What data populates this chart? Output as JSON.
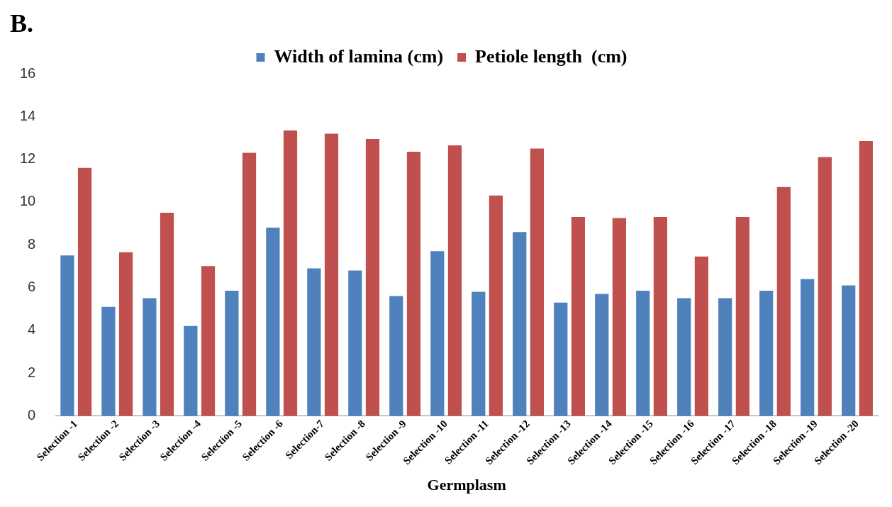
{
  "chart_data": {
    "type": "bar",
    "xlabel": "Germplasm",
    "annotations": [
      "B."
    ],
    "categories": [
      "Selection -1",
      "Selection -2",
      "Selection -3",
      "Selection -4",
      "Selection -5",
      "Selection -6",
      "Selection-7",
      "Selection -8",
      "Selection -9",
      "Selection -10",
      "Selection -11",
      "Selection -12",
      "Selection -13",
      "Selection -14",
      "Selection -15",
      "Selection -16",
      "Selection -17",
      "Selection -18",
      "Selection -19",
      "Selection -20"
    ],
    "series": [
      {
        "name": "Width of lamina (cm)",
        "color": "#4f81bd",
        "values": [
          7.5,
          5.1,
          5.5,
          4.2,
          5.85,
          8.8,
          6.9,
          6.8,
          5.6,
          7.7,
          5.8,
          8.6,
          5.3,
          5.7,
          5.85,
          5.5,
          5.5,
          5.85,
          6.4,
          6.1
        ]
      },
      {
        "name": "Petiole length  (cm)",
        "color": "#c0504d",
        "values": [
          11.6,
          7.65,
          9.5,
          7.0,
          12.3,
          13.35,
          13.2,
          12.95,
          12.35,
          12.65,
          10.3,
          12.5,
          9.3,
          9.25,
          9.3,
          7.45,
          9.3,
          10.7,
          12.1,
          12.85
        ]
      }
    ],
    "ylim": [
      0,
      16
    ],
    "yticks": [
      0,
      2,
      4,
      6,
      8,
      10,
      12,
      14,
      16
    ],
    "grid": false,
    "legend": "top"
  }
}
